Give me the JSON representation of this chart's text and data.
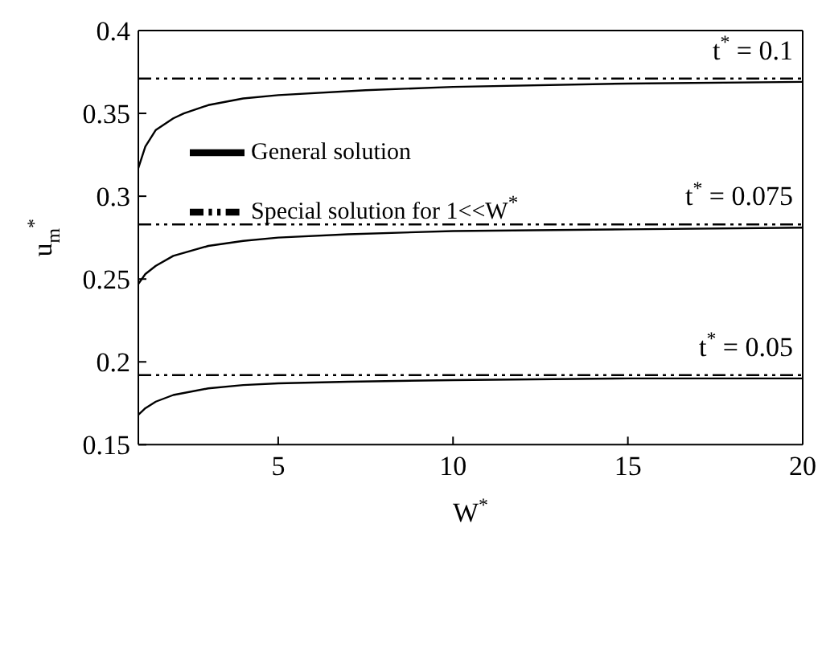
{
  "chart_data": {
    "type": "line",
    "xlabel": "W$^{*}$",
    "ylabel": "u$_{m}$$^{*}$",
    "xlim": [
      1,
      20
    ],
    "xticks": [
      5,
      10,
      15,
      20
    ],
    "ylim": [
      0.15,
      0.4
    ],
    "yticks": [
      0.15,
      0.2,
      0.25,
      0.3,
      0.35,
      0.4
    ],
    "grid": false,
    "legend": "top left",
    "marker": "none",
    "series": [
      {
        "name": "General solution",
        "color": "#000000",
        "line_style": "solid",
        "x": [
          1,
          1.2,
          1.5,
          2,
          2.3,
          3,
          4,
          5,
          7.5,
          10,
          15,
          20
        ],
        "values": [
          0.317,
          0.33,
          0.34,
          0.347,
          0.35,
          0.355,
          0.359,
          0.361,
          0.364,
          0.366,
          0.368,
          0.369
        ]
      },
      {
        "name": "Special solution for 1<<W$^{*}$",
        "color": "#000000",
        "line_style": "dashed",
        "x": [
          1,
          20
        ],
        "values": [
          0.371,
          0.371
        ]
      },
      {
        "color": "#000000",
        "line_style": "solid",
        "x": [
          1,
          1.2,
          1.5,
          2,
          3,
          4,
          5,
          7,
          10,
          15,
          20
        ],
        "values": [
          0.247,
          0.253,
          0.258,
          0.264,
          0.27,
          0.273,
          0.275,
          0.277,
          0.279,
          0.28,
          0.281
        ]
      },
      {
        "color": "#000000",
        "line_style": "dashed",
        "x": [
          1,
          20
        ],
        "values": [
          0.283,
          0.283
        ]
      },
      {
        "color": "#000000",
        "line_style": "solid",
        "x": [
          1,
          1.2,
          1.5,
          2,
          3,
          4,
          5,
          7,
          10,
          15,
          20
        ],
        "values": [
          0.168,
          0.172,
          0.176,
          0.18,
          0.184,
          0.186,
          0.187,
          0.188,
          0.189,
          0.19,
          0.19
        ]
      },
      {
        "color": "#000000",
        "line_style": "dashed",
        "x": [
          1,
          20
        ],
        "values": [
          0.192,
          0.192
        ]
      }
    ],
    "annotations": [
      "t$^{*}$ = 0.1",
      "t$^{*}$ = 0.075",
      "t$^{*}$ = 0.05"
    ]
  }
}
